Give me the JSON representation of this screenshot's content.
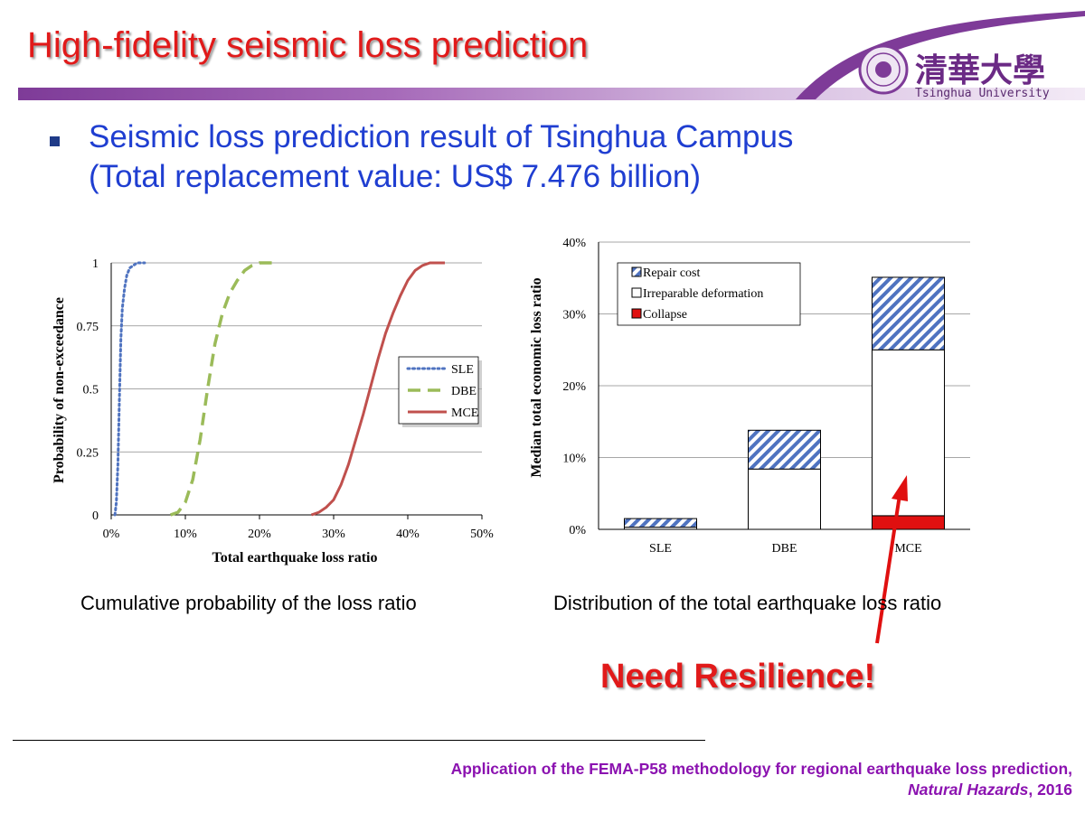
{
  "slide": {
    "title": "High-fidelity seismic loss prediction",
    "logo_text": "Tsinghua University",
    "logo_chinese": "清華大學",
    "bullet_line1": "Seismic loss prediction result of Tsinghua Campus",
    "bullet_line2": "(Total replacement value: US$ 7.476 billion)",
    "caption_left": "Cumulative probability of the loss ratio",
    "caption_right": "Distribution of the total earthquake loss ratio",
    "callout": "Need Resilience!",
    "reference_line1": "Application of the FEMA-P58 methodology for regional earthquake loss prediction,",
    "reference_journal": "Natural Hazards",
    "reference_year": ", 2016",
    "colors": {
      "title_red": "#e11a1a",
      "bullet_blue": "#1f3ed1",
      "reference_purple": "#8b12b0",
      "accent_purple": "#7e3b98"
    }
  },
  "chart_data": [
    {
      "type": "line",
      "ylabel": "Probability of non-exceedance",
      "xlabel": "Total earthquake loss ratio",
      "xlim": [
        0,
        0.5
      ],
      "ylim": [
        0,
        1
      ],
      "xticks": [
        "0%",
        "10%",
        "20%",
        "30%",
        "40%",
        "50%"
      ],
      "yticks": [
        "0",
        "0.25",
        "0.5",
        "0.75",
        "1"
      ],
      "grid": "horizontal",
      "legend_position": "right",
      "series": [
        {
          "name": "SLE",
          "style": "dotted",
          "color": "#4f73c0",
          "x": [
            0.005,
            0.007,
            0.009,
            0.011,
            0.013,
            0.015,
            0.018,
            0.021,
            0.025,
            0.03,
            0.035,
            0.04,
            0.045
          ],
          "y": [
            0,
            0.05,
            0.2,
            0.45,
            0.7,
            0.82,
            0.9,
            0.95,
            0.98,
            0.99,
            1,
            1,
            1
          ]
        },
        {
          "name": "DBE",
          "style": "dashed",
          "color": "#9bbb59",
          "x": [
            0.08,
            0.09,
            0.1,
            0.11,
            0.12,
            0.13,
            0.14,
            0.15,
            0.16,
            0.17,
            0.18,
            0.19,
            0.2,
            0.21,
            0.22
          ],
          "y": [
            0,
            0.01,
            0.05,
            0.14,
            0.3,
            0.5,
            0.68,
            0.8,
            0.88,
            0.93,
            0.97,
            0.99,
            1,
            1,
            1
          ]
        },
        {
          "name": "MCE",
          "style": "solid",
          "color": "#c0504d",
          "x": [
            0.27,
            0.28,
            0.29,
            0.3,
            0.31,
            0.32,
            0.33,
            0.34,
            0.35,
            0.36,
            0.37,
            0.38,
            0.39,
            0.4,
            0.41,
            0.42,
            0.43,
            0.44,
            0.45
          ],
          "y": [
            0,
            0.01,
            0.03,
            0.06,
            0.12,
            0.2,
            0.3,
            0.4,
            0.51,
            0.62,
            0.72,
            0.8,
            0.87,
            0.93,
            0.97,
            0.99,
            1,
            1,
            1
          ]
        }
      ]
    },
    {
      "type": "bar",
      "stacked": true,
      "ylabel": "Median total economic loss ratio",
      "categories": [
        "SLE",
        "DBE",
        "MCE"
      ],
      "ylim": [
        0,
        0.4
      ],
      "yticks": [
        "0%",
        "10%",
        "20%",
        "30%",
        "40%"
      ],
      "grid": "horizontal",
      "legend_position": "top-left",
      "series": [
        {
          "name": "Collapse",
          "fill": "solid",
          "color": "#e01010",
          "values": [
            0,
            0,
            0.019
          ]
        },
        {
          "name": "Irreparable deformation",
          "fill": "white",
          "color": "#ffffff",
          "values": [
            0.003,
            0.084,
            0.231
          ]
        },
        {
          "name": "Repair cost",
          "fill": "hatched",
          "color": "#4f73c0",
          "values": [
            0.012,
            0.054,
            0.101
          ]
        }
      ]
    }
  ]
}
